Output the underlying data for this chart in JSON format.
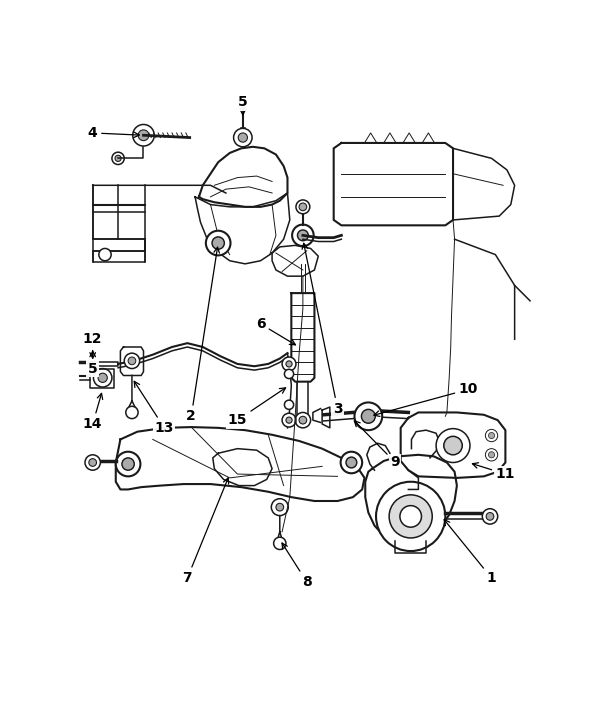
{
  "background_color": "#ffffff",
  "line_color": "#1a1a1a",
  "label_color": "#000000",
  "fig_width": 5.94,
  "fig_height": 7.1,
  "dpi": 100
}
